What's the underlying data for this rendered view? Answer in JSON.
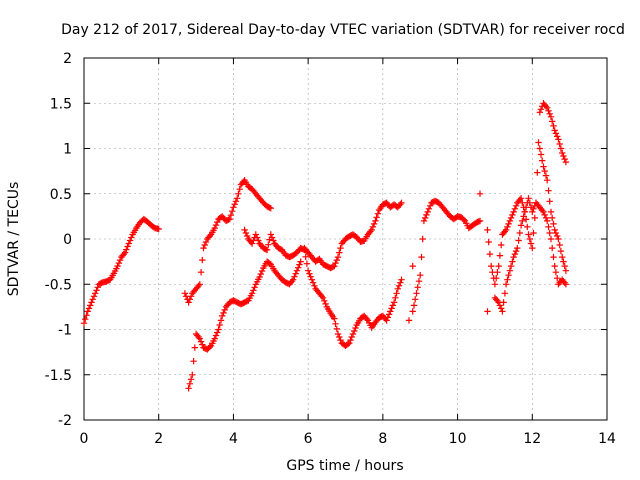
{
  "chart_data": {
    "type": "scatter",
    "title": "Day 212 of 2017, Sidereal Day-to-day VTEC variation (SDTVAR) for receiver rocd",
    "xlabel": "GPS time / hours",
    "ylabel": "SDTVAR / TECUs",
    "xlim": [
      0,
      14
    ],
    "ylim": [
      -2,
      2
    ],
    "grid": true,
    "marker": "+",
    "colors": {
      "series": "#ff0000",
      "axis": "#000000",
      "grid": "#a0a0a0"
    },
    "x_tick_labels": [
      "0",
      "2",
      "4",
      "6",
      "8",
      "10",
      "12",
      "14"
    ],
    "y_tick_labels": [
      "-2",
      "-1.5",
      "-1",
      "-0.5",
      "0",
      "0.5",
      "1",
      "1.5",
      "2"
    ],
    "series": [
      {
        "name": "SDTVAR",
        "segments": [
          [
            [
              0.0,
              -0.93
            ],
            [
              0.1,
              -0.8
            ],
            [
              0.2,
              -0.7
            ],
            [
              0.3,
              -0.6
            ],
            [
              0.4,
              -0.5
            ],
            [
              0.5,
              -0.48
            ],
            [
              0.6,
              -0.47
            ],
            [
              0.7,
              -0.45
            ],
            [
              0.8,
              -0.38
            ],
            [
              0.9,
              -0.3
            ],
            [
              1.0,
              -0.2
            ],
            [
              1.1,
              -0.15
            ],
            [
              1.2,
              -0.05
            ],
            [
              1.3,
              0.05
            ],
            [
              1.4,
              0.12
            ],
            [
              1.5,
              0.18
            ],
            [
              1.6,
              0.22
            ],
            [
              1.7,
              0.19
            ],
            [
              1.8,
              0.15
            ],
            [
              1.9,
              0.12
            ],
            [
              2.0,
              0.11
            ]
          ],
          [
            [
              2.7,
              -0.6
            ],
            [
              2.8,
              -0.7
            ],
            [
              2.9,
              -0.6
            ],
            [
              3.0,
              -0.55
            ],
            [
              3.1,
              -0.5
            ],
            [
              3.2,
              -0.1
            ],
            [
              3.3,
              0.0
            ],
            [
              3.4,
              0.05
            ],
            [
              3.5,
              0.12
            ],
            [
              3.6,
              0.22
            ],
            [
              3.7,
              0.25
            ],
            [
              3.8,
              0.2
            ],
            [
              3.9,
              0.22
            ],
            [
              4.0,
              0.35
            ],
            [
              4.1,
              0.45
            ],
            [
              4.2,
              0.6
            ],
            [
              4.3,
              0.65
            ],
            [
              4.4,
              0.58
            ],
            [
              4.5,
              0.55
            ],
            [
              4.6,
              0.5
            ],
            [
              4.7,
              0.45
            ],
            [
              4.8,
              0.4
            ],
            [
              4.9,
              0.36
            ],
            [
              5.0,
              0.34
            ]
          ],
          [
            [
              2.8,
              -1.65
            ],
            [
              2.9,
              -1.5
            ],
            [
              3.0,
              -1.05
            ],
            [
              3.1,
              -1.1
            ],
            [
              3.2,
              -1.2
            ],
            [
              3.3,
              -1.22
            ],
            [
              3.4,
              -1.18
            ],
            [
              3.5,
              -1.1
            ],
            [
              3.6,
              -1.0
            ],
            [
              3.7,
              -0.85
            ],
            [
              3.8,
              -0.75
            ],
            [
              3.9,
              -0.7
            ],
            [
              4.0,
              -0.68
            ],
            [
              4.1,
              -0.7
            ],
            [
              4.2,
              -0.72
            ],
            [
              4.3,
              -0.7
            ],
            [
              4.4,
              -0.68
            ],
            [
              4.5,
              -0.6
            ],
            [
              4.6,
              -0.5
            ],
            [
              4.7,
              -0.42
            ],
            [
              4.8,
              -0.32
            ],
            [
              4.9,
              -0.25
            ],
            [
              5.0,
              -0.28
            ],
            [
              5.1,
              -0.35
            ],
            [
              5.2,
              -0.4
            ],
            [
              5.3,
              -0.45
            ],
            [
              5.4,
              -0.48
            ],
            [
              5.5,
              -0.5
            ],
            [
              5.6,
              -0.45
            ],
            [
              5.7,
              -0.35
            ],
            [
              5.8,
              -0.25
            ]
          ],
          [
            [
              4.3,
              0.1
            ],
            [
              4.4,
              0.0
            ],
            [
              4.5,
              -0.05
            ],
            [
              4.6,
              0.05
            ],
            [
              4.7,
              -0.05
            ],
            [
              4.8,
              -0.1
            ],
            [
              4.9,
              -0.12
            ],
            [
              5.0,
              0.05
            ],
            [
              5.1,
              -0.05
            ],
            [
              5.2,
              -0.1
            ],
            [
              5.3,
              -0.12
            ],
            [
              5.4,
              -0.18
            ],
            [
              5.5,
              -0.2
            ],
            [
              5.6,
              -0.18
            ],
            [
              5.7,
              -0.15
            ],
            [
              5.8,
              -0.1
            ],
            [
              5.9,
              -0.12
            ],
            [
              6.0,
              -0.35
            ],
            [
              6.1,
              -0.45
            ],
            [
              6.2,
              -0.55
            ],
            [
              6.3,
              -0.6
            ],
            [
              6.4,
              -0.65
            ],
            [
              6.5,
              -0.75
            ],
            [
              6.6,
              -0.82
            ],
            [
              6.7,
              -0.88
            ],
            [
              6.8,
              -1.05
            ],
            [
              6.9,
              -1.15
            ],
            [
              7.0,
              -1.18
            ],
            [
              7.1,
              -1.15
            ],
            [
              7.2,
              -1.05
            ],
            [
              7.3,
              -0.95
            ],
            [
              7.4,
              -0.88
            ],
            [
              7.5,
              -0.85
            ],
            [
              7.6,
              -0.9
            ],
            [
              7.7,
              -0.98
            ],
            [
              7.8,
              -0.92
            ],
            [
              7.9,
              -0.87
            ],
            [
              8.0,
              -0.85
            ],
            [
              8.1,
              -0.9
            ],
            [
              8.2,
              -0.8
            ],
            [
              8.3,
              -0.7
            ],
            [
              8.4,
              -0.55
            ],
            [
              8.5,
              -0.45
            ]
          ],
          [
            [
              5.9,
              -0.1
            ],
            [
              6.0,
              -0.15
            ],
            [
              6.1,
              -0.2
            ],
            [
              6.2,
              -0.25
            ],
            [
              6.3,
              -0.22
            ],
            [
              6.4,
              -0.28
            ],
            [
              6.5,
              -0.3
            ],
            [
              6.6,
              -0.32
            ],
            [
              6.7,
              -0.3
            ],
            [
              6.8,
              -0.2
            ],
            [
              6.9,
              -0.05
            ],
            [
              7.0,
              0.0
            ],
            [
              7.1,
              0.03
            ],
            [
              7.2,
              0.05
            ],
            [
              7.3,
              0.02
            ],
            [
              7.4,
              -0.03
            ],
            [
              7.5,
              -0.02
            ],
            [
              7.6,
              0.05
            ],
            [
              7.7,
              0.1
            ],
            [
              7.8,
              0.2
            ],
            [
              7.9,
              0.32
            ],
            [
              8.0,
              0.38
            ],
            [
              8.1,
              0.4
            ],
            [
              8.2,
              0.35
            ],
            [
              8.3,
              0.38
            ],
            [
              8.4,
              0.35
            ],
            [
              8.5,
              0.4
            ]
          ],
          [
            [
              8.8,
              -0.8
            ],
            [
              8.9,
              -0.6
            ],
            [
              9.0,
              -0.4
            ],
            [
              9.1,
              0.2
            ],
            [
              9.2,
              0.3
            ],
            [
              9.3,
              0.4
            ],
            [
              9.4,
              0.42
            ],
            [
              9.5,
              0.4
            ],
            [
              9.6,
              0.35
            ],
            [
              9.7,
              0.3
            ],
            [
              9.8,
              0.25
            ],
            [
              9.9,
              0.22
            ],
            [
              10.0,
              0.25
            ],
            [
              10.1,
              0.24
            ],
            [
              10.2,
              0.2
            ],
            [
              10.3,
              0.12
            ],
            [
              10.4,
              0.15
            ],
            [
              10.5,
              0.18
            ],
            [
              10.6,
              0.2
            ]
          ],
          [
            [
              10.8,
              0.1
            ],
            [
              10.9,
              -0.3
            ],
            [
              11.0,
              -0.5
            ],
            [
              11.1,
              -0.3
            ],
            [
              11.2,
              0.05
            ],
            [
              11.3,
              0.1
            ],
            [
              11.4,
              0.2
            ],
            [
              11.5,
              0.3
            ],
            [
              11.6,
              0.4
            ],
            [
              11.7,
              0.45
            ],
            [
              11.8,
              0.3
            ],
            [
              11.9,
              0.05
            ],
            [
              12.0,
              -0.1
            ],
            [
              12.1,
              0.4
            ],
            [
              12.2,
              1.4
            ],
            [
              12.3,
              1.5
            ],
            [
              12.4,
              1.45
            ],
            [
              12.5,
              1.35
            ],
            [
              12.6,
              1.2
            ],
            [
              12.7,
              1.1
            ],
            [
              12.8,
              0.95
            ],
            [
              12.9,
              0.85
            ]
          ],
          [
            [
              11.0,
              -0.65
            ],
            [
              11.1,
              -0.7
            ],
            [
              11.2,
              -0.8
            ],
            [
              11.3,
              -0.5
            ],
            [
              11.4,
              -0.35
            ],
            [
              11.5,
              -0.2
            ],
            [
              11.6,
              -0.1
            ],
            [
              11.7,
              0.15
            ],
            [
              11.8,
              0.3
            ],
            [
              11.9,
              0.45
            ],
            [
              12.0,
              0.3
            ],
            [
              12.1,
              0.4
            ],
            [
              12.2,
              0.35
            ],
            [
              12.3,
              0.3
            ],
            [
              12.4,
              0.2
            ],
            [
              12.5,
              0.0
            ],
            [
              12.6,
              -0.3
            ],
            [
              12.7,
              -0.5
            ],
            [
              12.8,
              -0.45
            ],
            [
              12.9,
              -0.5
            ]
          ],
          [
            [
              12.2,
              1.0
            ],
            [
              12.3,
              0.8
            ],
            [
              12.4,
              0.65
            ],
            [
              12.5,
              0.3
            ],
            [
              12.6,
              0.1
            ],
            [
              12.7,
              0.0
            ],
            [
              12.8,
              -0.2
            ],
            [
              12.9,
              -0.35
            ]
          ]
        ]
      }
    ],
    "isolated_points": [
      [
        10.6,
        0.5
      ],
      [
        10.8,
        -0.8
      ],
      [
        8.7,
        -0.9
      ],
      [
        8.8,
        -0.3
      ]
    ]
  }
}
